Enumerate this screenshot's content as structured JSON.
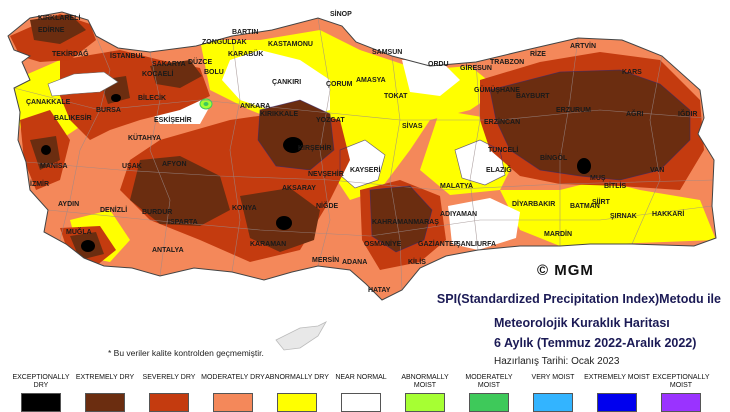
{
  "title": {
    "line1": "SPI(Standardized Precipitation Index)Metodu ile",
    "line2": "Meteorolojik Kuraklık Haritası",
    "line3": "6 Aylık (Temmuz 2022-Aralık 2022)",
    "prepared": "Hazırlanış Tarihi: Ocak 2023"
  },
  "logo_text": "© MGM",
  "footnote": "* Bu veriler kalite kontrolden geçmemiştir.",
  "legend": [
    {
      "label": "EXCEPTIONALLY DRY",
      "color": "#000000"
    },
    {
      "label": "EXTREMELY DRY",
      "color": "#6b2d10"
    },
    {
      "label": "SEVERELY DRY",
      "color": "#c43b0f"
    },
    {
      "label": "MODERATELY DRY",
      "color": "#f4885a"
    },
    {
      "label": "ABNORMALLY DRY",
      "color": "#ffff00"
    },
    {
      "label": "NEAR NORMAL",
      "color": "#ffffff"
    },
    {
      "label": "ABNORMALLY MOIST",
      "color": "#a6ff33"
    },
    {
      "label": "MODERATELY MOIST",
      "color": "#3ec95a"
    },
    {
      "label": "VERY MOIST",
      "color": "#33b4ff"
    },
    {
      "label": "EXTREMELY MOIST",
      "color": "#0000ee"
    },
    {
      "label": "EXCEPTIONALLY MOIST",
      "color": "#9a33ff"
    }
  ],
  "cities": [
    "KIRKLARELİ",
    "EDİRNE",
    "TEKİRDAĞ",
    "İSTANBUL",
    "ÇANAKKALE",
    "BALIKESİR",
    "MANİSA",
    "İZMİR",
    "AYDIN",
    "MUĞLA",
    "DENİZLİ",
    "BURDUR",
    "ISPARTA",
    "ANTALYA",
    "AFYON",
    "UŞAK",
    "KÜTAHYA",
    "BİLECİK",
    "BURSA",
    "SAKARYA",
    "KOCAELİ",
    "DÜZCE",
    "BOLU",
    "ZONGULDAK",
    "BARTIN",
    "KARABÜK",
    "KASTAMONU",
    "SİNOP",
    "ÇANKIRI",
    "ÇORUM",
    "SAMSUN",
    "AMASYA",
    "TOKAT",
    "ORDU",
    "GİRESUN",
    "TRABZON",
    "RİZE",
    "ARTVİN",
    "GÜMÜŞHANE",
    "BAYBURT",
    "ERZURUM",
    "KARS",
    "AĞRI",
    "IĞDIR",
    "VAN",
    "MUŞ",
    "BİNGÖL",
    "ERZİNCAN",
    "TUNCELİ",
    "ELAZIĞ",
    "MALATYA",
    "SİVAS",
    "YOZGAT",
    "KIRIKKALE",
    "ANKARA",
    "ESKİŞEHİR",
    "KIRŞEHİR",
    "NEVŞEHİR",
    "KAYSERİ",
    "AKSARAY",
    "NİĞDE",
    "KONYA",
    "KARAMAN",
    "MERSİN",
    "ADANA",
    "OSMANİYE",
    "KAHRAMANMARAŞ",
    "HATAY",
    "KİLİS",
    "GAZİANTEP",
    "ADIYAMAN",
    "ŞANLIURFA",
    "MARDİN",
    "BATMAN",
    "SİİRT",
    "ŞIRNAK",
    "HAKKARİ",
    "DİYARBAKIR",
    "BİTLİS"
  ]
}
